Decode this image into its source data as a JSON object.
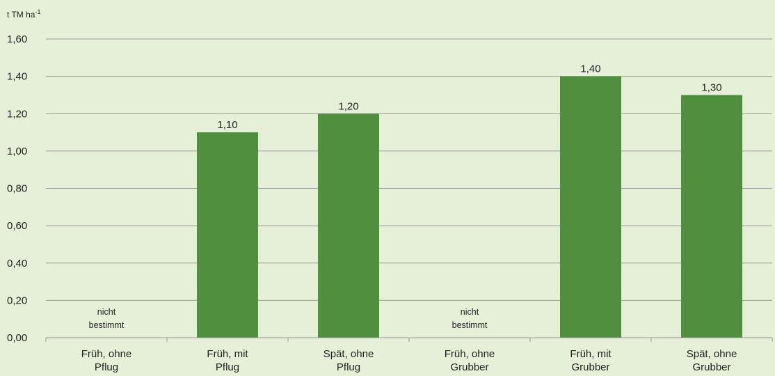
{
  "chart_data": {
    "type": "bar",
    "ylabel": "t TM ha",
    "ylabel_sup": "-1",
    "categories": [
      [
        "Früh, ohne",
        "Pflug"
      ],
      [
        "Früh, mit",
        "Pflug"
      ],
      [
        "Spät, ohne",
        "Pflug"
      ],
      [
        "Früh, ohne",
        "Grubber"
      ],
      [
        "Früh, mit",
        "Grubber"
      ],
      [
        "Spät, ohne",
        "Grubber"
      ]
    ],
    "values": [
      null,
      1.1,
      1.2,
      null,
      1.4,
      1.3
    ],
    "data_labels": [
      "",
      "1,10",
      "1,20",
      "",
      "1,40",
      "1,30"
    ],
    "notes": [
      [
        "nicht",
        "bestimmt"
      ],
      null,
      null,
      [
        "nicht",
        "bestimmt"
      ],
      null,
      null
    ],
    "ylim": [
      0,
      1.6
    ],
    "yticks": [
      0,
      0.2,
      0.4,
      0.6,
      0.8,
      1.0,
      1.2,
      1.4,
      1.6
    ],
    "ytick_labels": [
      "0,00",
      "0,20",
      "0,40",
      "0,60",
      "0,80",
      "1,00",
      "1,20",
      "1,40",
      "1,60"
    ],
    "grid": true,
    "legend": "none",
    "colors": {
      "bar": "#4f8f3e",
      "grid": "#9a9a9a",
      "background": "#e6efd8",
      "text": "#222222"
    }
  }
}
